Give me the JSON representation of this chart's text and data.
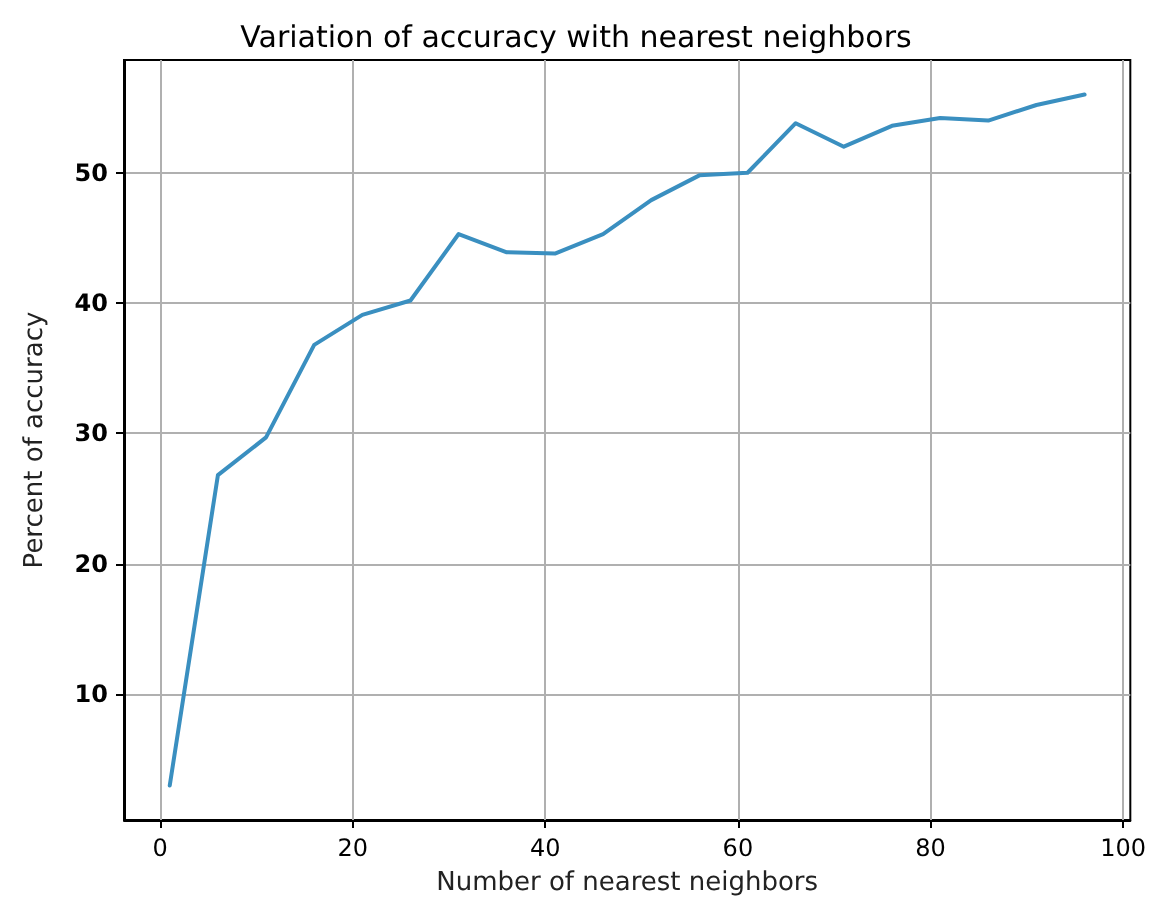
{
  "chart_data": {
    "type": "line",
    "title": "Variation of accuracy with nearest neighbors",
    "xlabel": "Number of nearest neighbors",
    "ylabel": "Percent of accuracy",
    "x": [
      1,
      6,
      11,
      16,
      21,
      26,
      31,
      36,
      41,
      46,
      51,
      56,
      61,
      66,
      71,
      76,
      81,
      86,
      91,
      96
    ],
    "series": [
      {
        "color": "#3a8fc0",
        "values": [
          3,
          26.8,
          29.7,
          36.8,
          39.1,
          40.2,
          45.3,
          43.9,
          43.8,
          45.3,
          47.9,
          49.8,
          50,
          53.8,
          52,
          53.6,
          54.2,
          54,
          55.2,
          56
        ]
      }
    ],
    "xlim": [
      -3.75,
      100.75
    ],
    "ylim": [
      0.35,
      58.65
    ],
    "xticks": [
      0,
      20,
      40,
      60,
      80,
      100
    ],
    "yticks": [
      10,
      20,
      30,
      40,
      50
    ],
    "grid": true,
    "marker": "none",
    "line_style": "solid"
  }
}
